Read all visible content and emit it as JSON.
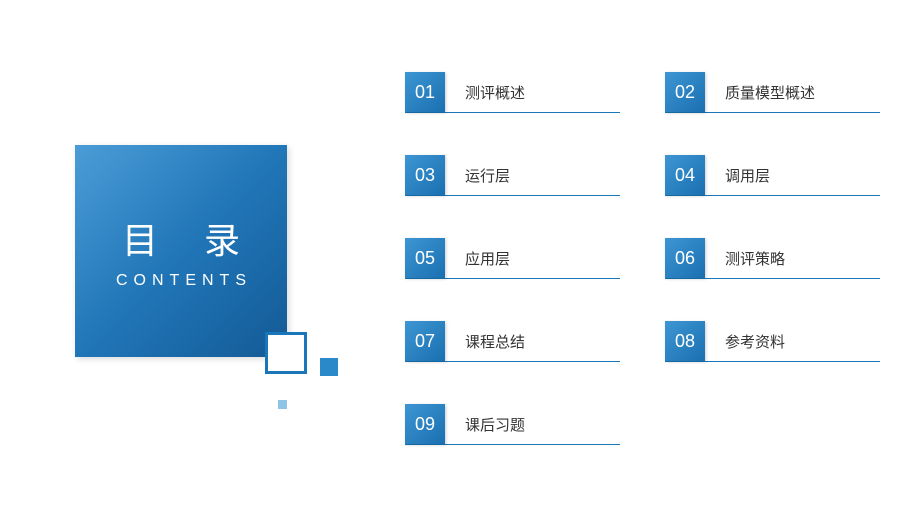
{
  "title": {
    "main": "目 录",
    "sub": "CONTENTS"
  },
  "colors": {
    "gradient_start": "#4a9dd6",
    "gradient_mid": "#2176b8",
    "gradient_end": "#135a95",
    "outline": "#1976b8",
    "small_square": "#2a8ac9",
    "tiny_square": "#8fc4e6",
    "text": "#333333",
    "underline": "#1976b8",
    "background": "#ffffff"
  },
  "typography": {
    "title_main_size": 36,
    "title_sub_size": 16,
    "num_size": 18,
    "label_size": 15
  },
  "items": [
    {
      "num": "01",
      "label": "测评概述"
    },
    {
      "num": "02",
      "label": "质量模型概述"
    },
    {
      "num": "03",
      "label": "运行层"
    },
    {
      "num": "04",
      "label": "调用层"
    },
    {
      "num": "05",
      "label": "应用层"
    },
    {
      "num": "06",
      "label": "测评策略"
    },
    {
      "num": "07",
      "label": "课程总结"
    },
    {
      "num": "08",
      "label": "参考资料"
    },
    {
      "num": "09",
      "label": "课后习题"
    }
  ]
}
